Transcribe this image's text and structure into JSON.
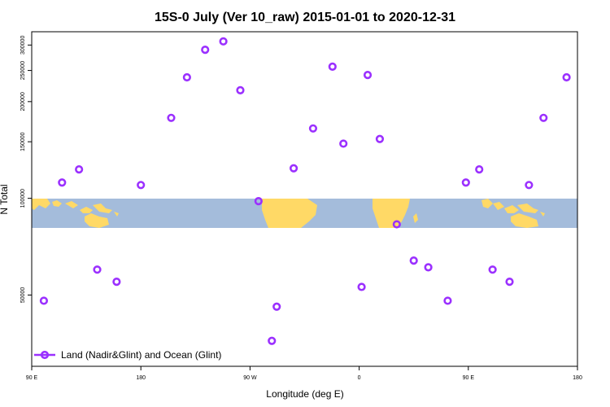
{
  "chart_data": {
    "type": "scatter",
    "title": "15S-0 July (Ver 10_raw)   2015-01-01 to 2020-12-31",
    "xlabel": "Longitude (deg E)",
    "ylabel": "N Total",
    "x_ticks": [
      {
        "value": 90,
        "label": "90 E"
      },
      {
        "value": 180,
        "label": "180"
      },
      {
        "value": 270,
        "label": "90 W"
      },
      {
        "value": 360,
        "label": "0"
      },
      {
        "value": 450,
        "label": "90 E"
      },
      {
        "value": 540,
        "label": "180"
      }
    ],
    "y_ticks": [
      {
        "value": 50000,
        "label": "50000"
      },
      {
        "value": 100000,
        "label": "100000"
      },
      {
        "value": 150000,
        "label": "150000"
      },
      {
        "value": 200000,
        "label": "200000"
      },
      {
        "value": 250000,
        "label": "250000"
      },
      {
        "value": 300000,
        "label": "300000"
      }
    ],
    "xlim": [
      90,
      540
    ],
    "ylim": [
      30000,
      330000
    ],
    "y_scale": "log",
    "grid": false,
    "legend_position": "bottom-left",
    "map_background": true,
    "series": [
      {
        "name": "Land (Nadir&Glint) and Ocean (Glint)",
        "color": "#9B30FF",
        "marker": "open-circle",
        "x": [
          100,
          115,
          129,
          144,
          160,
          180,
          205,
          218,
          233,
          248,
          262,
          277,
          288,
          292,
          306,
          322,
          338,
          347,
          362,
          367,
          377,
          391,
          405,
          417,
          433,
          448,
          459,
          470,
          484,
          500,
          512,
          531
        ],
        "y": [
          48000,
          112000,
          123000,
          60000,
          55000,
          110000,
          178000,
          238000,
          290000,
          308000,
          217000,
          98000,
          36000,
          46000,
          124000,
          165000,
          257000,
          148000,
          53000,
          242000,
          153000,
          83000,
          64000,
          61000,
          48000,
          112000,
          123000,
          60000,
          55000,
          110000,
          178000,
          238000
        ]
      }
    ]
  }
}
